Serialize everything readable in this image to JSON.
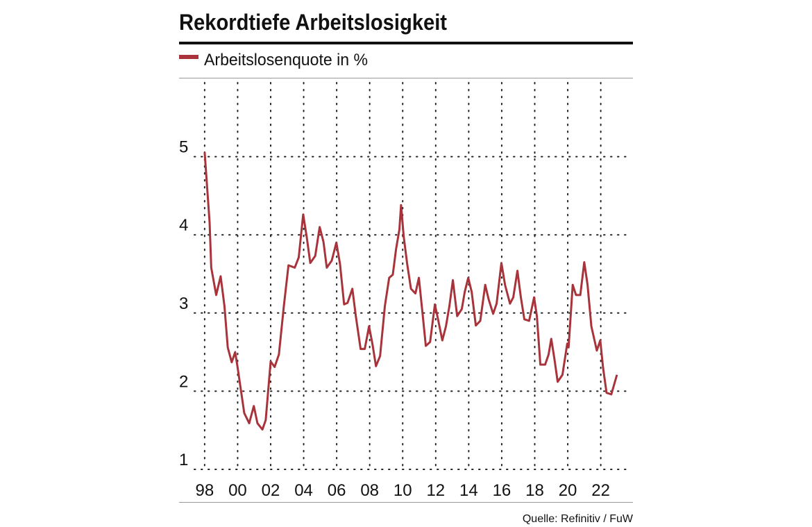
{
  "chart_data": {
    "type": "line",
    "title": "Rekordtiefe Arbeitslosigkeit",
    "source": "Quelle: Refinitiv / FuW",
    "x": [
      1998.0,
      1998.3,
      1998.4,
      1998.7,
      1998.97,
      1999.2,
      1999.4,
      1999.64,
      1999.85,
      2000.0,
      2000.4,
      2000.7,
      2000.98,
      2001.2,
      2001.5,
      2001.7,
      2002.0,
      2002.24,
      2002.5,
      2002.8,
      2003.08,
      2003.46,
      2003.7,
      2003.97,
      2004.18,
      2004.4,
      2004.7,
      2004.97,
      2005.2,
      2005.4,
      2005.7,
      2005.98,
      2006.2,
      2006.45,
      2006.66,
      2006.95,
      2007.16,
      2007.45,
      2007.7,
      2007.96,
      2008.17,
      2008.38,
      2008.63,
      2008.92,
      2009.18,
      2009.4,
      2009.6,
      2009.8,
      2009.9,
      2010.06,
      2010.27,
      2010.5,
      2010.77,
      2010.98,
      2011.2,
      2011.4,
      2011.66,
      2011.95,
      2012.16,
      2012.4,
      2012.62,
      2012.83,
      2013.04,
      2013.3,
      2013.58,
      2013.76,
      2013.97,
      2014.18,
      2014.43,
      2014.7,
      2015.0,
      2015.2,
      2015.48,
      2015.69,
      2015.98,
      2016.2,
      2016.5,
      2016.7,
      2016.95,
      2017.16,
      2017.37,
      2017.66,
      2017.96,
      2018.13,
      2018.34,
      2018.63,
      2018.84,
      2019.0,
      2019.18,
      2019.39,
      2019.68,
      2019.97,
      2020.05,
      2020.3,
      2020.5,
      2020.76,
      2021.0,
      2021.2,
      2021.43,
      2021.76,
      2021.97,
      2022.14,
      2022.35,
      2022.64,
      2022.98
    ],
    "series": [
      {
        "name": "Arbeitslosenquote in %",
        "color": "#a8333a",
        "values": [
          5.06,
          4.16,
          3.58,
          3.23,
          3.47,
          3.09,
          2.56,
          2.37,
          2.5,
          2.3,
          1.72,
          1.59,
          1.81,
          1.59,
          1.51,
          1.63,
          2.38,
          2.31,
          2.47,
          3.09,
          3.61,
          3.58,
          3.71,
          4.26,
          3.98,
          3.64,
          3.73,
          4.1,
          3.91,
          3.58,
          3.67,
          3.9,
          3.63,
          3.11,
          3.13,
          3.31,
          2.96,
          2.54,
          2.54,
          2.83,
          2.6,
          2.32,
          2.45,
          3.09,
          3.45,
          3.49,
          3.82,
          4.07,
          4.38,
          3.98,
          3.63,
          3.31,
          3.25,
          3.45,
          3.0,
          2.58,
          2.63,
          3.11,
          2.9,
          2.65,
          2.83,
          3.09,
          3.42,
          2.96,
          3.05,
          3.27,
          3.45,
          3.27,
          2.84,
          2.9,
          3.36,
          3.18,
          2.99,
          3.12,
          3.64,
          3.36,
          3.12,
          3.2,
          3.54,
          3.2,
          2.92,
          2.9,
          3.2,
          2.96,
          2.34,
          2.34,
          2.47,
          2.67,
          2.43,
          2.12,
          2.21,
          2.61,
          2.56,
          3.36,
          3.23,
          3.23,
          3.65,
          3.36,
          2.83,
          2.52,
          2.65,
          2.3,
          1.98,
          1.96,
          2.21
        ]
      }
    ],
    "xlim": [
      1996.45,
      2023.95
    ],
    "xticks": [
      {
        "value": 1998,
        "label": "98"
      },
      {
        "value": 2000,
        "label": "00"
      },
      {
        "value": 2002,
        "label": "02"
      },
      {
        "value": 2004,
        "label": "04"
      },
      {
        "value": 2006,
        "label": "06"
      },
      {
        "value": 2008,
        "label": "08"
      },
      {
        "value": 2010,
        "label": "10"
      },
      {
        "value": 2012,
        "label": "12"
      },
      {
        "value": 2014,
        "label": "14"
      },
      {
        "value": 2016,
        "label": "16"
      },
      {
        "value": 2018,
        "label": "18"
      },
      {
        "value": 2020,
        "label": "20"
      },
      {
        "value": 2022,
        "label": "22"
      }
    ],
    "ylim": [
      1,
      6
    ],
    "yticks": [
      1,
      2,
      3,
      4,
      5
    ],
    "grid": true
  }
}
